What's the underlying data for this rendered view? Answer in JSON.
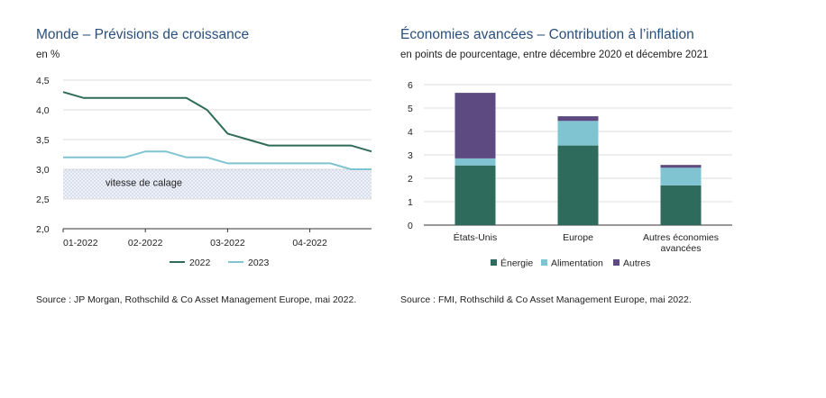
{
  "chart_data": [
    {
      "type": "line",
      "title": "Monde – Prévisions de croissance",
      "subtitle": "en %",
      "xlabel": "",
      "ylabel": "",
      "ylim": [
        2.0,
        4.5
      ],
      "yticks": [
        "2,0",
        "2,5",
        "3,0",
        "3,5",
        "4,0",
        "4,5"
      ],
      "ytick_values": [
        2.0,
        2.5,
        3.0,
        3.5,
        4.0,
        4.5
      ],
      "xticks": [
        "01-2022",
        "02-2022",
        "03-2022",
        "04-2022"
      ],
      "xtick_positions": [
        0,
        4,
        8,
        12
      ],
      "x": [
        0,
        1,
        2,
        3,
        4,
        5,
        6,
        7,
        8,
        9,
        10,
        11,
        12,
        13,
        14,
        15
      ],
      "xlim": [
        0,
        15
      ],
      "series": [
        {
          "name": "2022",
          "color": "#2e6b58",
          "values": [
            4.3,
            4.2,
            4.2,
            4.2,
            4.2,
            4.2,
            4.2,
            4.0,
            3.6,
            3.5,
            3.4,
            3.4,
            3.4,
            3.4,
            3.4,
            3.3
          ]
        },
        {
          "name": "2023",
          "color": "#7fc4d0",
          "values": [
            3.2,
            3.2,
            3.2,
            3.2,
            3.3,
            3.3,
            3.2,
            3.2,
            3.1,
            3.1,
            3.1,
            3.1,
            3.1,
            3.1,
            3.0,
            3.0
          ]
        }
      ],
      "band": {
        "label": "vitesse de calage",
        "from": 2.5,
        "to": 3.0
      },
      "legend_position": "bottom-center",
      "source": "Source : JP Morgan, Rothschild & Co Asset Management Europe, mai 2022."
    },
    {
      "type": "bar",
      "stacked": true,
      "title": "Économies avancées – Contribution à l’inflation",
      "subtitle": "en points de pourcentage, entre décembre 2020 et décembre 2021",
      "xlabel": "",
      "ylabel": "",
      "ylim": [
        0,
        6
      ],
      "yticks": [
        "0",
        "1",
        "2",
        "3",
        "4",
        "5",
        "6"
      ],
      "ytick_values": [
        0,
        1,
        2,
        3,
        4,
        5,
        6
      ],
      "categories": [
        "États-Unis",
        "Europe",
        "Autres économies avancées"
      ],
      "category_lines": [
        [
          "États-Unis"
        ],
        [
          "Europe"
        ],
        [
          "Autres économies",
          "avancées"
        ]
      ],
      "series": [
        {
          "name": "Énergie",
          "color": "#2f6b5d",
          "values": [
            2.55,
            3.4,
            1.7
          ]
        },
        {
          "name": "Alimentation",
          "color": "#7fc4d0",
          "values": [
            0.3,
            1.05,
            0.75
          ]
        },
        {
          "name": "Autres",
          "color": "#5c4a80",
          "values": [
            2.8,
            0.2,
            0.12
          ]
        }
      ],
      "legend_position": "bottom-center",
      "source": "Source : FMI, Rothschild & Co Asset Management Europe, mai 2022."
    }
  ]
}
